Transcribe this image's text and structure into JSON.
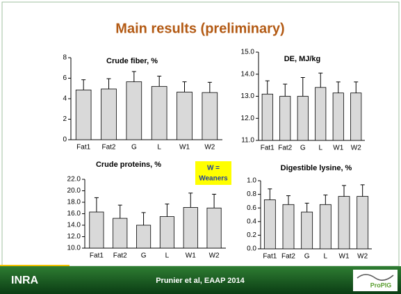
{
  "slide": {
    "title": "Main results (preliminary)",
    "note": "W = Weaners",
    "footer": "Prunier et al, EAAP 2014",
    "logo_left": "INRA",
    "logo_right": "ProPIG"
  },
  "chart_data": [
    {
      "type": "bar",
      "title": "Crude fiber, %",
      "categories": [
        "Fat1",
        "Fat2",
        "G",
        "L",
        "W1",
        "W2"
      ],
      "values": [
        4.85,
        4.95,
        5.65,
        5.2,
        4.65,
        4.6
      ],
      "errors": [
        1.0,
        1.0,
        1.0,
        1.0,
        1.0,
        1.0
      ],
      "color": "#d9d9d9",
      "ylim": [
        0,
        8
      ],
      "yticks": [
        0,
        2,
        4,
        6,
        8
      ]
    },
    {
      "type": "bar",
      "title": "DE, MJ/kg",
      "categories": [
        "Fat1",
        "Fat2",
        "G",
        "L",
        "W1",
        "W2"
      ],
      "values": [
        13.1,
        13.0,
        13.0,
        13.4,
        13.15,
        13.15
      ],
      "errors": [
        0.6,
        0.55,
        0.85,
        0.65,
        0.5,
        0.5
      ],
      "color": "#d9d9d9",
      "ylim": [
        11,
        15
      ],
      "yticks": [
        {
          "value": 11,
          "label": "11.0"
        },
        {
          "value": 12,
          "label": "12.0"
        },
        {
          "value": 13,
          "label": "13.0"
        },
        {
          "value": 14,
          "label": "14.0"
        },
        {
          "value": 15,
          "label": "15.0"
        }
      ]
    },
    {
      "type": "bar",
      "title": "Crude proteins, %",
      "categories": [
        "Fat1",
        "Fat2",
        "G",
        "L",
        "W1",
        "W2"
      ],
      "values": [
        16.3,
        15.2,
        14.0,
        15.5,
        17.1,
        17.0
      ],
      "errors": [
        2.5,
        2.3,
        2.2,
        2.2,
        2.5,
        2.4
      ],
      "color": "#d9d9d9",
      "ylim": [
        10,
        22
      ],
      "yticks": [
        {
          "value": 10,
          "label": "10.0"
        },
        {
          "value": 12,
          "label": "12.0"
        },
        {
          "value": 14,
          "label": "14.0"
        },
        {
          "value": 16,
          "label": "16.0"
        },
        {
          "value": 18,
          "label": "18.0"
        },
        {
          "value": 20,
          "label": "20.0"
        },
        {
          "value": 22,
          "label": "22.0"
        }
      ]
    },
    {
      "type": "bar",
      "title": "Digestible lysine, %",
      "categories": [
        "Fat1",
        "Fat2",
        "G",
        "L",
        "W1",
        "W2"
      ],
      "values": [
        0.72,
        0.65,
        0.54,
        0.65,
        0.77,
        0.77
      ],
      "errors": [
        0.16,
        0.13,
        0.13,
        0.14,
        0.16,
        0.17
      ],
      "color": "#d9d9d9",
      "ylim": [
        0,
        1
      ],
      "yticks": [
        {
          "value": 0,
          "label": "0.0"
        },
        0.2,
        0.4,
        0.6,
        0.8,
        {
          "value": 1,
          "label": "1.0"
        }
      ]
    }
  ]
}
